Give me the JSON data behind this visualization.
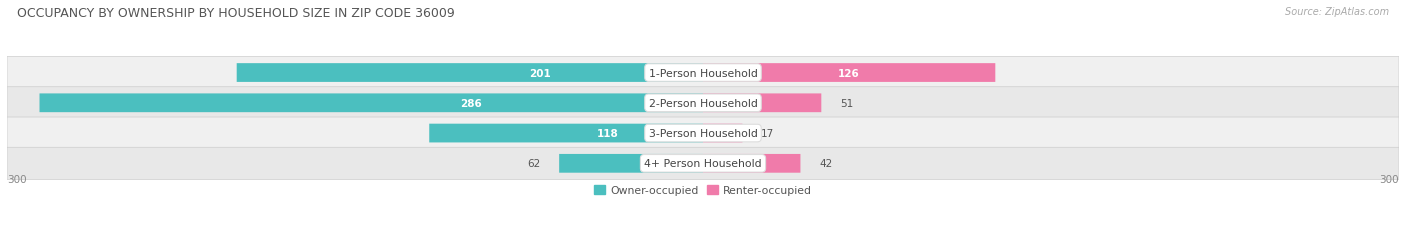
{
  "title": "OCCUPANCY BY OWNERSHIP BY HOUSEHOLD SIZE IN ZIP CODE 36009",
  "source": "Source: ZipAtlas.com",
  "categories": [
    "1-Person Household",
    "2-Person Household",
    "3-Person Household",
    "4+ Person Household"
  ],
  "owner_values": [
    201,
    286,
    118,
    62
  ],
  "renter_values": [
    126,
    51,
    17,
    42
  ],
  "owner_color": "#4BBFBF",
  "renter_color": "#F07BAA",
  "axis_max": 300,
  "row_bg_colors": [
    "#F0F0F0",
    "#E8E8E8",
    "#F0F0F0",
    "#E8E8E8"
  ],
  "title_fontsize": 9.0,
  "label_fontsize": 7.8,
  "value_fontsize": 7.5,
  "legend_fontsize": 7.8,
  "source_fontsize": 7.0,
  "axis_label_fontsize": 7.5
}
